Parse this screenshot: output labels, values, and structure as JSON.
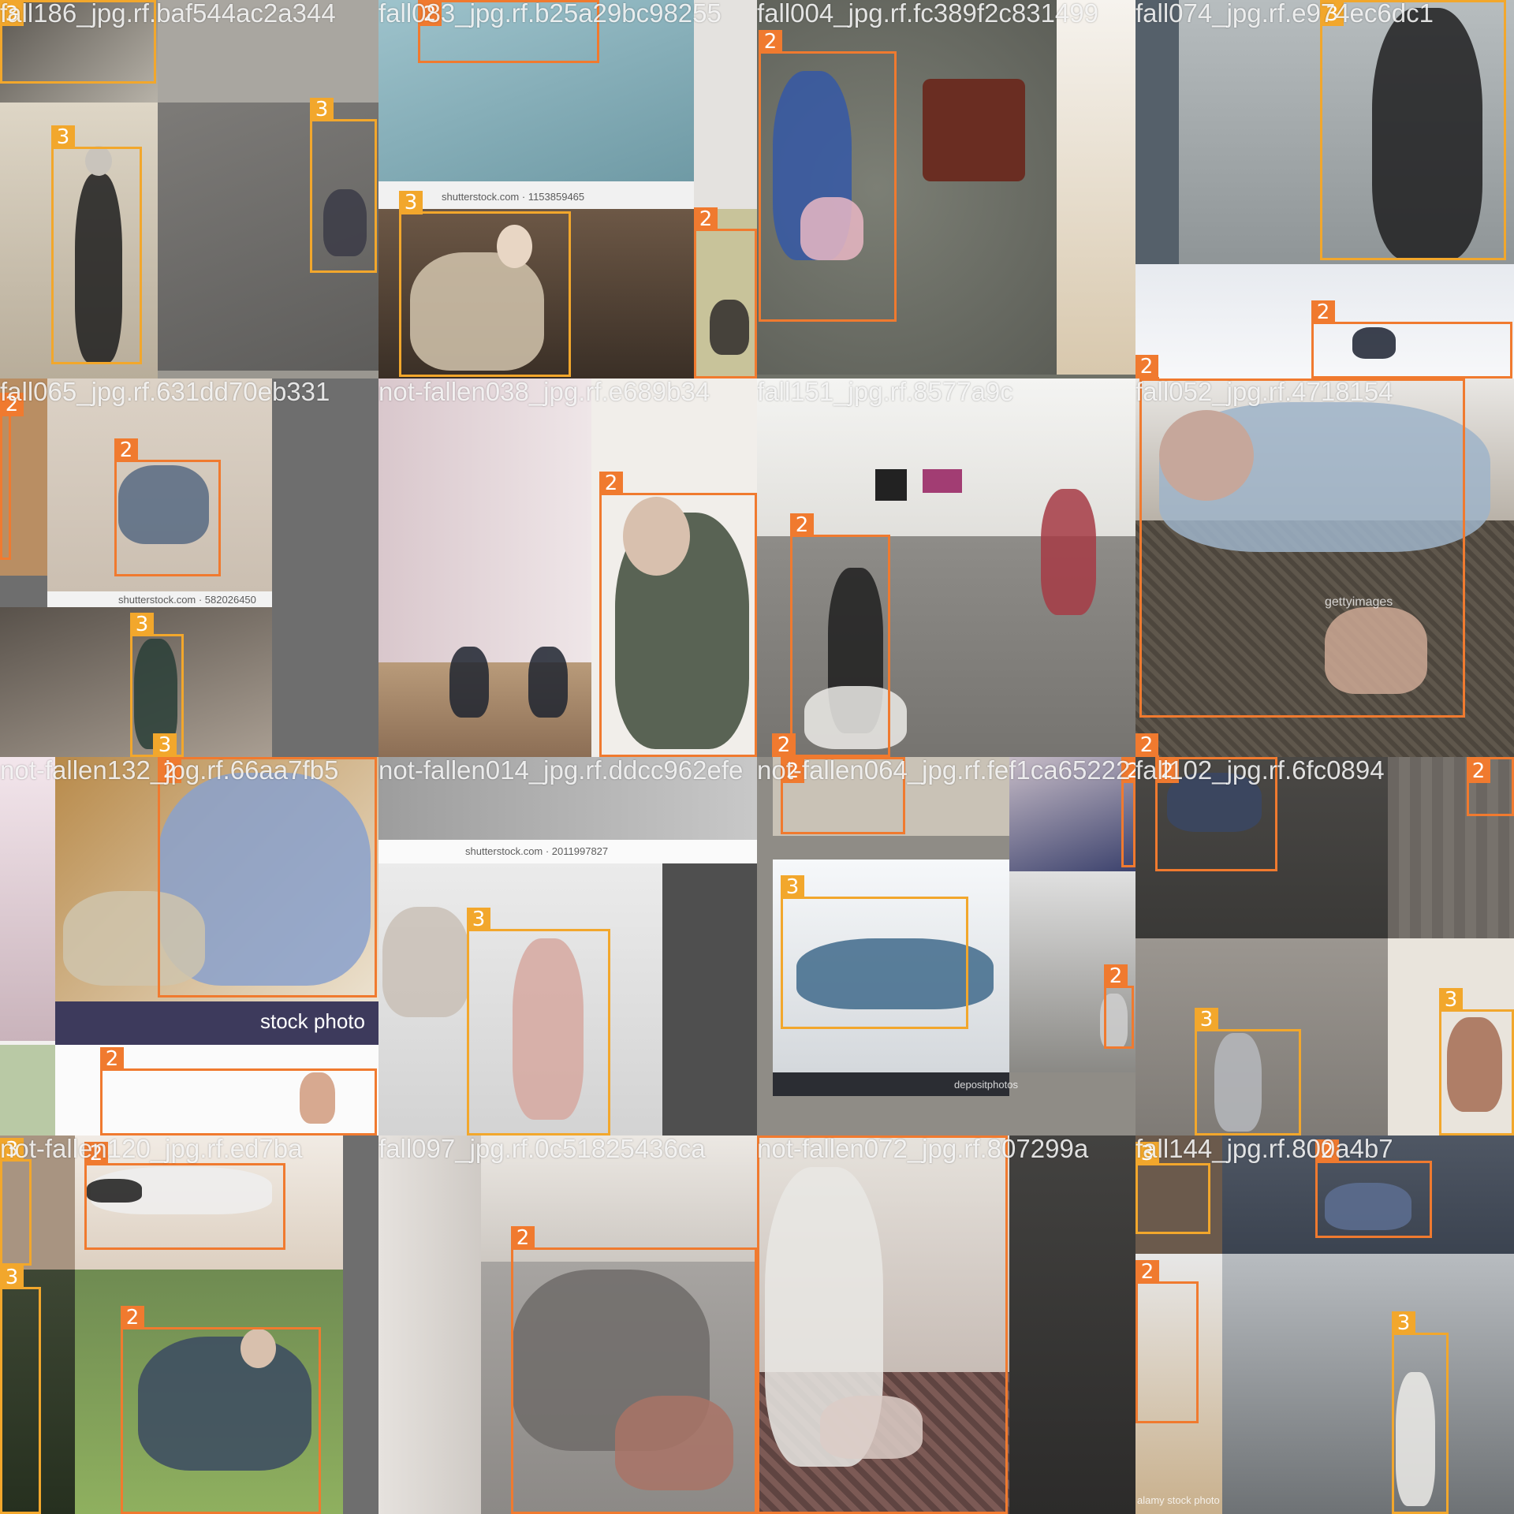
{
  "colors": {
    "class_2": "#F07A2F",
    "class_3": "#F2A72C"
  },
  "tiles": [
    {
      "title": "fall186_jpg.rf.baf544ac2a344",
      "boxes": [
        {
          "label": "3"
        },
        {
          "label": "3"
        },
        {
          "label": "3"
        }
      ],
      "watermark": ""
    },
    {
      "title": "fall083_jpg.rf.b25a29bc98255",
      "boxes": [
        {
          "label": "2"
        },
        {
          "label": "3"
        },
        {
          "label": "2"
        }
      ],
      "watermark": "shutterstock.com · 1153859465"
    },
    {
      "title": "fall004_jpg.rf.fc389f2c831499",
      "boxes": [
        {
          "label": "2"
        }
      ],
      "watermark": ""
    },
    {
      "title": "fall074_jpg.rf.e974ec6dc1",
      "boxes": [
        {
          "label": "3"
        },
        {
          "label": "2"
        },
        {
          "label": "2"
        }
      ],
      "watermark": ""
    },
    {
      "title": "fall065_jpg.rf.631dd70eb331",
      "boxes": [
        {
          "label": "2"
        },
        {
          "label": "2"
        },
        {
          "label": "3"
        },
        {
          "label": "3"
        }
      ],
      "watermark": "shutterstock.com · 582026450"
    },
    {
      "title": "not-fallen038_jpg.rf.e689b34",
      "boxes": [
        {
          "label": "2"
        }
      ],
      "watermark": ""
    },
    {
      "title": "fall151_jpg.rf.8577a9c",
      "boxes": [
        {
          "label": "2"
        },
        {
          "label": "2"
        }
      ],
      "watermark": ""
    },
    {
      "title": "fall052_jpg.rf.4718154",
      "boxes": [
        {
          "label": "2"
        },
        {
          "label": "2"
        }
      ],
      "watermark": "gettyimages"
    },
    {
      "title": "not-fallen132_jpg.rf.66aa7fb5",
      "boxes": [
        {
          "label": "2"
        },
        {
          "label": "2"
        }
      ],
      "watermark": "stock photo"
    },
    {
      "title": "not-fallen014_jpg.rf.ddcc962efe",
      "boxes": [
        {
          "label": "3"
        }
      ],
      "watermark": "shutterstock.com · 2011997827"
    },
    {
      "title": "not-fallen064_jpg.rf.fef1ca65222",
      "boxes": [
        {
          "label": "3"
        },
        {
          "label": "2"
        },
        {
          "label": "2"
        },
        {
          "label": "2"
        }
      ],
      "watermark": "depositphotos"
    },
    {
      "title": "fall102_jpg.rf.6fc0894",
      "boxes": [
        {
          "label": "2"
        },
        {
          "label": "3"
        },
        {
          "label": "3"
        },
        {
          "label": "2"
        }
      ],
      "watermark": ""
    },
    {
      "title": "not-fallen120_jpg.rf.ed7ba",
      "boxes": [
        {
          "label": "3"
        },
        {
          "label": "2"
        },
        {
          "label": "3"
        },
        {
          "label": "2"
        }
      ],
      "watermark": ""
    },
    {
      "title": "fall097_jpg.rf.0c51825436ca",
      "boxes": [
        {
          "label": "2"
        }
      ],
      "watermark": ""
    },
    {
      "title": "not-fallen072_jpg.rf.807299a",
      "boxes": [
        {
          "label": "2"
        }
      ],
      "watermark": ""
    },
    {
      "title": "fall144_jpg.rf.800a4b7",
      "boxes": [
        {
          "label": "3"
        },
        {
          "label": "2"
        },
        {
          "label": "2"
        },
        {
          "label": "3"
        }
      ],
      "watermark": "alamy stock photo"
    }
  ]
}
